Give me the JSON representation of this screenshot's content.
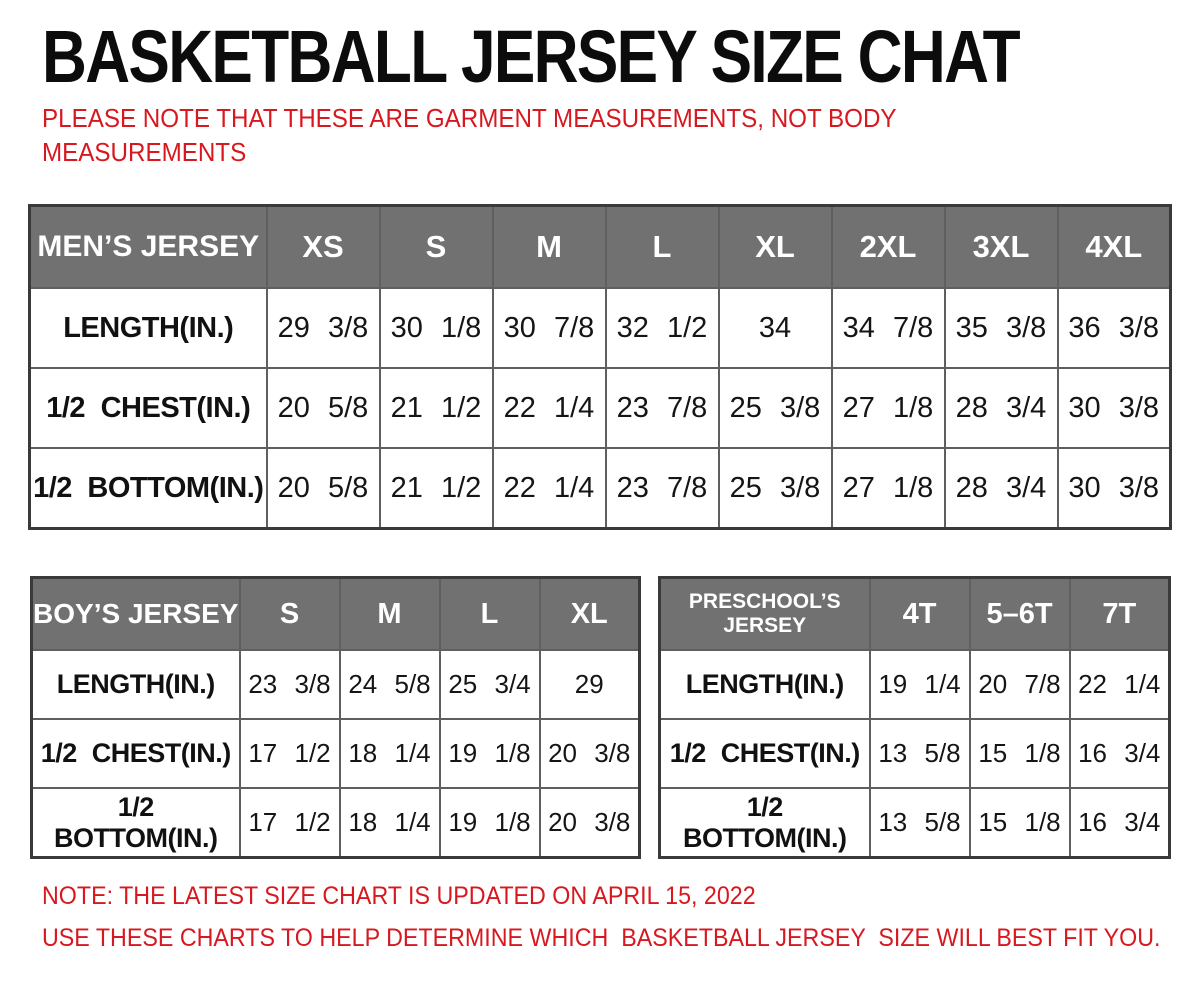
{
  "page": {
    "title": "BASKETBALL JERSEY SIZE CHAT",
    "subtitle": "PLEASE NOTE THAT THESE ARE GARMENT MEASUREMENTS, NOT BODY\nMEASUREMENTS",
    "footnote1": "NOTE: THE LATEST SIZE CHART IS UPDATED ON APRIL 15, 2022",
    "footnote2": "USE THESE CHARTS TO HELP DETERMINE WHICH  BASKETBALL JERSEY  SIZE WILL BEST FIT YOU."
  },
  "colors": {
    "accent_red": "#d8181f",
    "header_gray": "#717171",
    "border_dark": "#3a3a3a",
    "border_inner": "#5f5f5f",
    "text_black": "#0c0c0c"
  },
  "tables": [
    {
      "id": "mens",
      "header_label": "MEN’S JERSEY",
      "sizes": [
        "XS",
        "S",
        "M",
        "L",
        "XL",
        "2XL",
        "3XL",
        "4XL"
      ],
      "rows": [
        {
          "label": "LENGTH(IN.)",
          "values": [
            "29 3/8",
            "30 1/8",
            "30 7/8",
            "32 1/2",
            "34",
            "34 7/8",
            "35 3/8",
            "36 3/8"
          ]
        },
        {
          "label": "1/2 CHEST(IN.)",
          "values": [
            "20 5/8",
            "21 1/2",
            "22 1/4",
            "23 7/8",
            "25 3/8",
            "27 1/8",
            "28 3/4",
            "30 3/8"
          ]
        },
        {
          "label": "1/2 BOTTOM(IN.)",
          "values": [
            "20 5/8",
            "21 1/2",
            "22 1/4",
            "23 7/8",
            "25 3/8",
            "27 1/8",
            "28 3/4",
            "30 3/8"
          ]
        }
      ]
    },
    {
      "id": "boys",
      "header_label": "BOY’S JERSEY",
      "sizes": [
        "S",
        "M",
        "L",
        "XL"
      ],
      "rows": [
        {
          "label": "LENGTH(IN.)",
          "values": [
            "23 3/8",
            "24 5/8",
            "25 3/4",
            "29"
          ]
        },
        {
          "label": "1/2 CHEST(IN.)",
          "values": [
            "17 1/2",
            "18 1/4",
            "19 1/8",
            "20 3/8"
          ]
        },
        {
          "label": "1/2 BOTTOM(IN.)",
          "values": [
            "17 1/2",
            "18 1/4",
            "19 1/8",
            "20 3/8"
          ]
        }
      ]
    },
    {
      "id": "preschool",
      "header_label": "PRESCHOOL’S JERSEY",
      "sizes": [
        "4T",
        "5–6T",
        "7T"
      ],
      "rows": [
        {
          "label": "LENGTH(IN.)",
          "values": [
            "19 1/4",
            "20 7/8",
            "22 1/4"
          ]
        },
        {
          "label": "1/2 CHEST(IN.)",
          "values": [
            "13 5/8",
            "15 1/8",
            "16 3/4"
          ]
        },
        {
          "label": "1/2 BOTTOM(IN.)",
          "values": [
            "13 5/8",
            "15 1/8",
            "16 3/4"
          ]
        }
      ]
    }
  ]
}
